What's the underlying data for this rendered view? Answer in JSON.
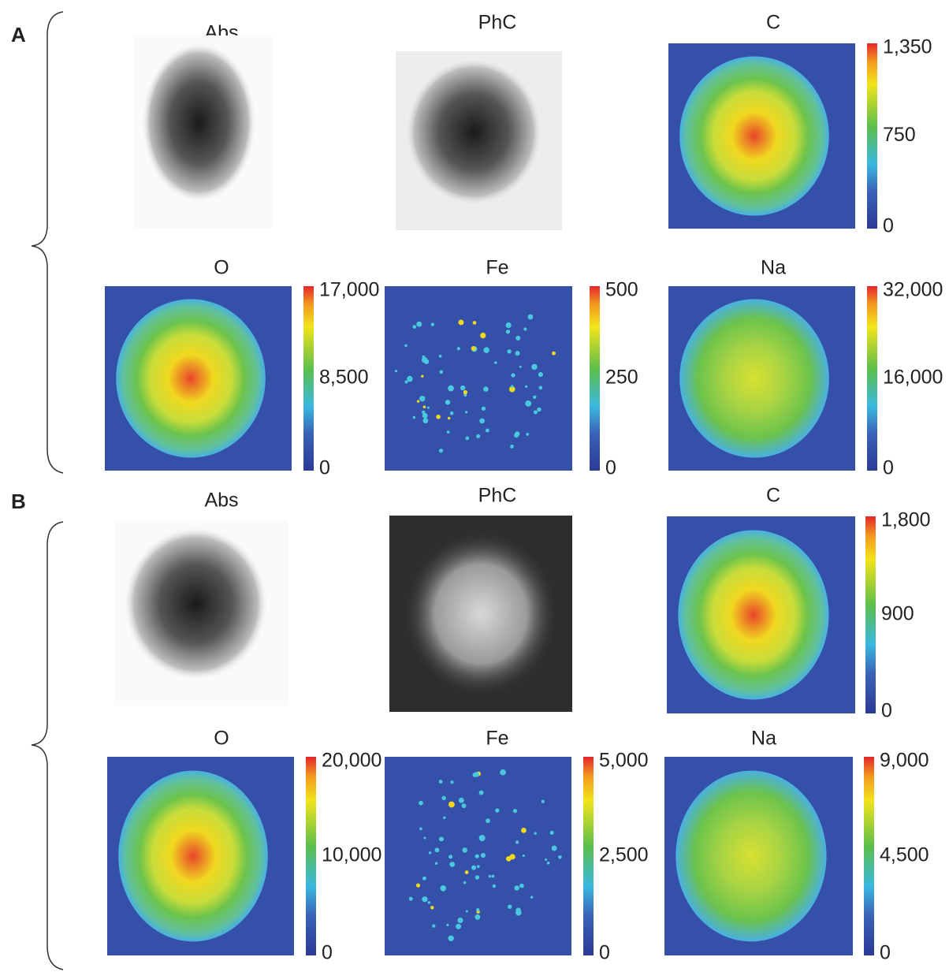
{
  "panels": [
    {
      "label": "A",
      "images": [
        {
          "title": "Abs"
        },
        {
          "title": "PhC"
        },
        {
          "title": "C",
          "colorbar": [
            "1,350",
            "750",
            "0"
          ]
        },
        {
          "title": "O",
          "colorbar": [
            "17,000",
            "8,500",
            "0"
          ]
        },
        {
          "title": "Fe",
          "colorbar": [
            "500",
            "250",
            "0"
          ]
        },
        {
          "title": "Na",
          "colorbar": [
            "32,000",
            "16,000",
            "0"
          ]
        }
      ]
    },
    {
      "label": "B",
      "images": [
        {
          "title": "Abs"
        },
        {
          "title": "PhC"
        },
        {
          "title": "C",
          "colorbar": [
            "1,800",
            "900",
            "0"
          ]
        },
        {
          "title": "O",
          "colorbar": [
            "20,000",
            "10,000",
            "0"
          ]
        },
        {
          "title": "Fe",
          "colorbar": [
            "5,000",
            "2,500",
            "0"
          ]
        },
        {
          "title": "Na",
          "colorbar": [
            "9,000",
            "4,500",
            "0"
          ]
        }
      ]
    }
  ]
}
